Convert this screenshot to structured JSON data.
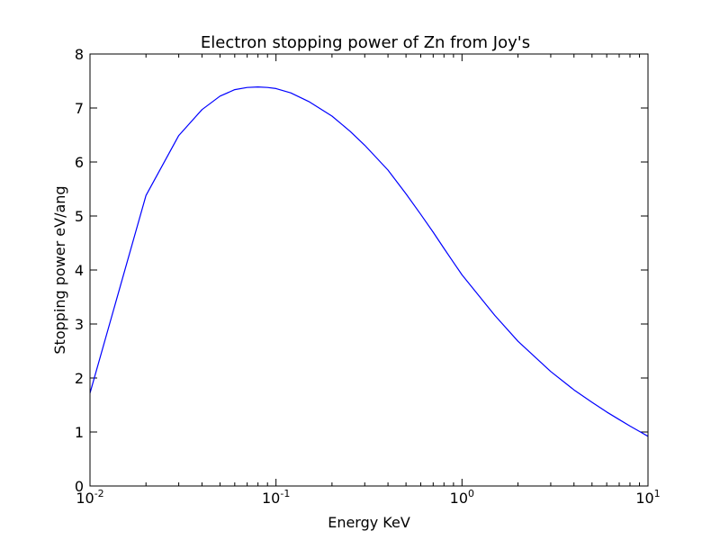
{
  "chart_data": {
    "type": "line",
    "title": "Electron stopping power of Zn from Joy's",
    "xlabel": "Energy KeV",
    "ylabel": "Stopping power eV/ang",
    "xscale": "log",
    "xlim": [
      0.01,
      10
    ],
    "ylim": [
      0,
      8
    ],
    "grid": false,
    "legend": "none",
    "x_ticks": [
      {
        "base": "10",
        "exp": "-2"
      },
      {
        "base": "10",
        "exp": "-1"
      },
      {
        "base": "10",
        "exp": "0"
      },
      {
        "base": "10",
        "exp": "1"
      }
    ],
    "y_ticks": [
      "0",
      "1",
      "2",
      "3",
      "4",
      "5",
      "6",
      "7",
      "8"
    ],
    "series": [
      {
        "color": "#0000ff",
        "x": [
          0.01,
          0.02,
          0.03,
          0.04,
          0.05,
          0.06,
          0.07,
          0.08,
          0.09,
          0.1,
          0.12,
          0.15,
          0.2,
          0.25,
          0.3,
          0.4,
          0.5,
          0.6,
          0.7,
          0.8,
          0.9,
          1.0,
          1.5,
          2.0,
          3.0,
          4.0,
          5.0,
          6.0,
          7.0,
          8.0,
          9.0,
          10.0
        ],
        "y": [
          1.72,
          5.38,
          6.49,
          6.97,
          7.22,
          7.34,
          7.38,
          7.39,
          7.38,
          7.36,
          7.28,
          7.12,
          6.85,
          6.57,
          6.31,
          5.85,
          5.41,
          5.03,
          4.7,
          4.4,
          4.14,
          3.91,
          3.16,
          2.68,
          2.12,
          1.78,
          1.55,
          1.37,
          1.23,
          1.11,
          1.01,
          0.92
        ]
      }
    ]
  }
}
